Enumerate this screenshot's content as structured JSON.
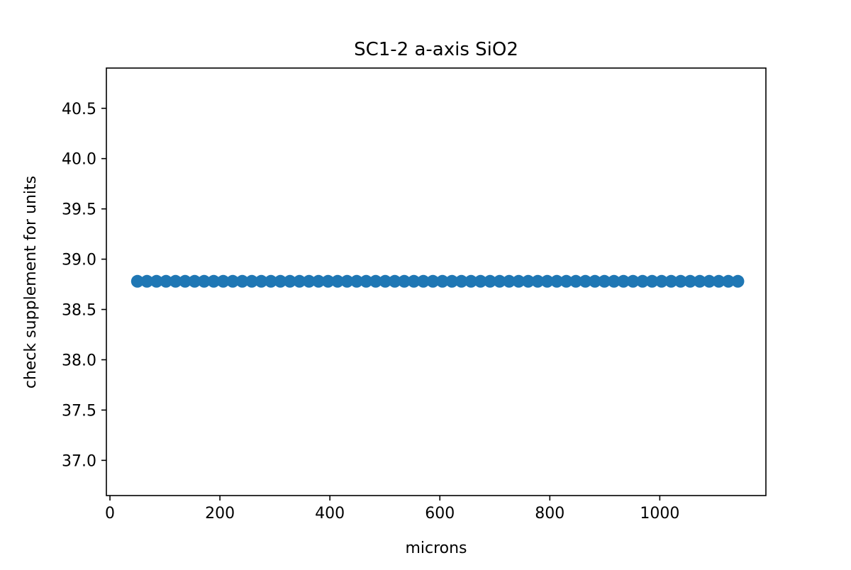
{
  "chart_data": {
    "type": "scatter",
    "title": "SC1-2 a-axis SiO2",
    "xlabel": "microns",
    "ylabel": "check supplement for units",
    "xlim": [
      -6.5,
      1193
    ],
    "ylim": [
      36.65,
      40.9
    ],
    "xticks": [
      0,
      200,
      400,
      600,
      800,
      1000
    ],
    "xtick_labels": [
      "0",
      "200",
      "400",
      "600",
      "800",
      "1000"
    ],
    "yticks": [
      37.0,
      37.5,
      38.0,
      38.5,
      39.0,
      39.5,
      40.0,
      40.5
    ],
    "ytick_labels": [
      "37.0",
      "37.5",
      "38.0",
      "38.5",
      "39.0",
      "39.5",
      "40.0",
      "40.5"
    ],
    "grid": false,
    "legend": "none",
    "marker_color": "#1f77b4",
    "series": [
      {
        "x": [
          50,
          67.3,
          84.7,
          102,
          119.3,
          136.7,
          154,
          171.3,
          188.7,
          206,
          223.3,
          240.7,
          258,
          275.3,
          292.7,
          310,
          327.3,
          344.7,
          362,
          379.3,
          396.7,
          414,
          431.3,
          448.7,
          466,
          483.3,
          500.7,
          518,
          535.3,
          552.7,
          570,
          587.3,
          604.7,
          622,
          639.3,
          656.7,
          674,
          691.3,
          708.7,
          726,
          743.3,
          760.7,
          778,
          795.3,
          812.7,
          830,
          847.3,
          864.7,
          882,
          899.3,
          916.7,
          934,
          951.3,
          968.7,
          986,
          1003.3,
          1020.7,
          1038,
          1055.3,
          1072.7,
          1090,
          1107.3,
          1124.7,
          1142
        ],
        "y": [
          38.78,
          38.78,
          38.78,
          38.78,
          38.78,
          38.78,
          38.78,
          38.78,
          38.78,
          38.78,
          38.78,
          38.78,
          38.78,
          38.78,
          38.78,
          38.78,
          38.78,
          38.78,
          38.78,
          38.78,
          38.78,
          38.78,
          38.78,
          38.78,
          38.78,
          38.78,
          38.78,
          38.78,
          38.78,
          38.78,
          38.78,
          38.78,
          38.78,
          38.78,
          38.78,
          38.78,
          38.78,
          38.78,
          38.78,
          38.78,
          38.78,
          38.78,
          38.78,
          38.78,
          38.78,
          38.78,
          38.78,
          38.78,
          38.78,
          38.78,
          38.78,
          38.78,
          38.78,
          38.78,
          38.78,
          38.78,
          38.78,
          38.78,
          38.78,
          38.78,
          38.78,
          38.78,
          38.78,
          38.78
        ]
      }
    ]
  }
}
